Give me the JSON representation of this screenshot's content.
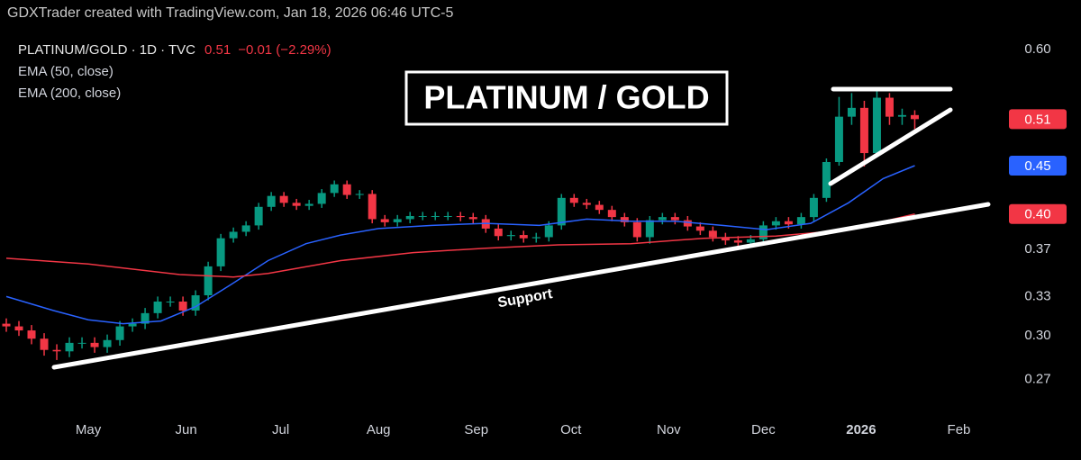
{
  "attribution": "GDXTrader created with TradingView.com, Jan 18, 2026 06:46 UTC-5",
  "chart_data": {
    "type": "candlestick",
    "title": "PLATINUM / GOLD",
    "annotations": [
      {
        "text": "Support"
      }
    ],
    "log_scale": true,
    "grid": false,
    "xlim": [
      -28,
      289
    ],
    "xticks": [
      {
        "value": 0,
        "label": "May"
      },
      {
        "value": 31,
        "label": "Jun"
      },
      {
        "value": 61,
        "label": "Jul"
      },
      {
        "value": 92,
        "label": "Aug"
      },
      {
        "value": 123,
        "label": "Sep"
      },
      {
        "value": 153,
        "label": "Oct"
      },
      {
        "value": 184,
        "label": "Nov"
      },
      {
        "value": 214,
        "label": "Dec"
      },
      {
        "value": 245,
        "label": "2026"
      },
      {
        "value": 276,
        "label": "Feb"
      }
    ],
    "ylim": [
      0.251,
      0.62
    ],
    "yticks": [
      0.27,
      {
        "value": 0.3,
        "label": "0.30"
      },
      0.33,
      0.37,
      {
        "value": 0.6,
        "label": "0.60"
      }
    ],
    "series": [
      {
        "name": "PLATINUM/GOLD · 1D · TVC",
        "type": "candlestick",
        "up_color": "#089981",
        "down_color": "#f23645",
        "last_label": "0.51",
        "change_label": "−0.01 (−2.29%)",
        "x": [
          -26,
          -22,
          -18,
          -14,
          -10,
          -6,
          -2,
          2,
          6,
          10,
          14,
          18,
          22,
          26,
          30,
          34,
          38,
          42,
          46,
          50,
          54,
          58,
          62,
          66,
          70,
          74,
          78,
          82,
          86,
          90,
          94,
          98,
          102,
          106,
          110,
          114,
          118,
          122,
          126,
          130,
          134,
          138,
          142,
          146,
          150,
          154,
          158,
          162,
          166,
          170,
          174,
          178,
          182,
          186,
          190,
          194,
          198,
          202,
          206,
          210,
          214,
          218,
          222,
          226,
          230,
          234,
          238,
          242,
          246,
          250,
          254,
          258,
          262
        ],
        "open": [
          0.309,
          0.307,
          0.304,
          0.298,
          0.29,
          0.289,
          0.295,
          0.295,
          0.292,
          0.297,
          0.307,
          0.309,
          0.317,
          0.326,
          0.326,
          0.319,
          0.331,
          0.355,
          0.38,
          0.386,
          0.392,
          0.41,
          0.421,
          0.414,
          0.411,
          0.413,
          0.424,
          0.433,
          0.422,
          0.423,
          0.398,
          0.395,
          0.398,
          0.401,
          0.401,
          0.401,
          0.401,
          0.4,
          0.398,
          0.389,
          0.382,
          0.383,
          0.38,
          0.381,
          0.392,
          0.419,
          0.414,
          0.412,
          0.407,
          0.4,
          0.395,
          0.381,
          0.397,
          0.4,
          0.397,
          0.391,
          0.387,
          0.381,
          0.378,
          0.376,
          0.379,
          0.392,
          0.396,
          0.393,
          0.4,
          0.419,
          0.457,
          0.51,
          0.521,
          0.467,
          0.534,
          0.51,
          0.512
        ],
        "high": [
          0.313,
          0.311,
          0.308,
          0.302,
          0.294,
          0.299,
          0.299,
          0.299,
          0.301,
          0.311,
          0.313,
          0.321,
          0.33,
          0.33,
          0.33,
          0.335,
          0.359,
          0.384,
          0.39,
          0.396,
          0.414,
          0.425,
          0.425,
          0.418,
          0.417,
          0.428,
          0.437,
          0.437,
          0.427,
          0.427,
          0.402,
          0.402,
          0.405,
          0.405,
          0.405,
          0.405,
          0.405,
          0.404,
          0.402,
          0.393,
          0.387,
          0.387,
          0.385,
          0.396,
          0.423,
          0.423,
          0.418,
          0.416,
          0.411,
          0.404,
          0.399,
          0.401,
          0.404,
          0.404,
          0.401,
          0.395,
          0.391,
          0.385,
          0.382,
          0.383,
          0.396,
          0.4,
          0.4,
          0.404,
          0.423,
          0.461,
          0.535,
          0.54,
          0.53,
          0.544,
          0.54,
          0.52,
          0.518
        ],
        "low": [
          0.303,
          0.3,
          0.294,
          0.286,
          0.283,
          0.285,
          0.291,
          0.288,
          0.288,
          0.293,
          0.303,
          0.305,
          0.313,
          0.322,
          0.315,
          0.315,
          0.327,
          0.351,
          0.376,
          0.382,
          0.388,
          0.406,
          0.41,
          0.407,
          0.407,
          0.409,
          0.42,
          0.418,
          0.418,
          0.394,
          0.391,
          0.391,
          0.394,
          0.397,
          0.397,
          0.397,
          0.396,
          0.394,
          0.385,
          0.378,
          0.378,
          0.376,
          0.376,
          0.377,
          0.388,
          0.41,
          0.408,
          0.403,
          0.396,
          0.391,
          0.377,
          0.375,
          0.393,
          0.393,
          0.387,
          0.383,
          0.377,
          0.374,
          0.372,
          0.372,
          0.375,
          0.388,
          0.389,
          0.389,
          0.396,
          0.415,
          0.453,
          0.5,
          0.452,
          0.463,
          0.5,
          0.5,
          0.495
        ],
        "close": [
          0.307,
          0.304,
          0.298,
          0.29,
          0.289,
          0.295,
          0.295,
          0.292,
          0.297,
          0.307,
          0.309,
          0.317,
          0.326,
          0.326,
          0.319,
          0.331,
          0.355,
          0.38,
          0.386,
          0.392,
          0.41,
          0.421,
          0.414,
          0.411,
          0.413,
          0.424,
          0.433,
          0.422,
          0.423,
          0.398,
          0.395,
          0.398,
          0.401,
          0.401,
          0.401,
          0.401,
          0.4,
          0.398,
          0.389,
          0.382,
          0.383,
          0.38,
          0.381,
          0.392,
          0.419,
          0.414,
          0.412,
          0.407,
          0.4,
          0.395,
          0.381,
          0.397,
          0.4,
          0.397,
          0.391,
          0.387,
          0.381,
          0.378,
          0.376,
          0.379,
          0.392,
          0.396,
          0.393,
          0.4,
          0.419,
          0.457,
          0.51,
          0.521,
          0.467,
          0.534,
          0.51,
          0.512,
          0.507
        ]
      },
      {
        "name": "EMA (50, close)",
        "type": "line",
        "color": "#2962ff",
        "last_label": "0.45",
        "x": [
          -26,
          -11,
          0,
          11,
          23,
          34,
          46,
          57,
          69,
          80,
          92,
          109,
          126,
          143,
          158,
          172,
          186,
          201,
          215,
          229,
          241,
          252,
          262
        ],
        "values": [
          0.33,
          0.319,
          0.312,
          0.309,
          0.311,
          0.322,
          0.341,
          0.36,
          0.375,
          0.383,
          0.389,
          0.392,
          0.394,
          0.392,
          0.398,
          0.396,
          0.396,
          0.392,
          0.388,
          0.394,
          0.414,
          0.439,
          0.453
        ]
      },
      {
        "name": "EMA (200, close)",
        "type": "line",
        "color": "#f23645",
        "last_label": "0.40",
        "x": [
          -26,
          0,
          29,
          46,
          57,
          80,
          103,
          126,
          149,
          172,
          195,
          218,
          241,
          262
        ],
        "values": [
          0.362,
          0.357,
          0.348,
          0.346,
          0.349,
          0.36,
          0.367,
          0.371,
          0.374,
          0.375,
          0.38,
          0.382,
          0.388,
          0.403
        ]
      }
    ]
  }
}
